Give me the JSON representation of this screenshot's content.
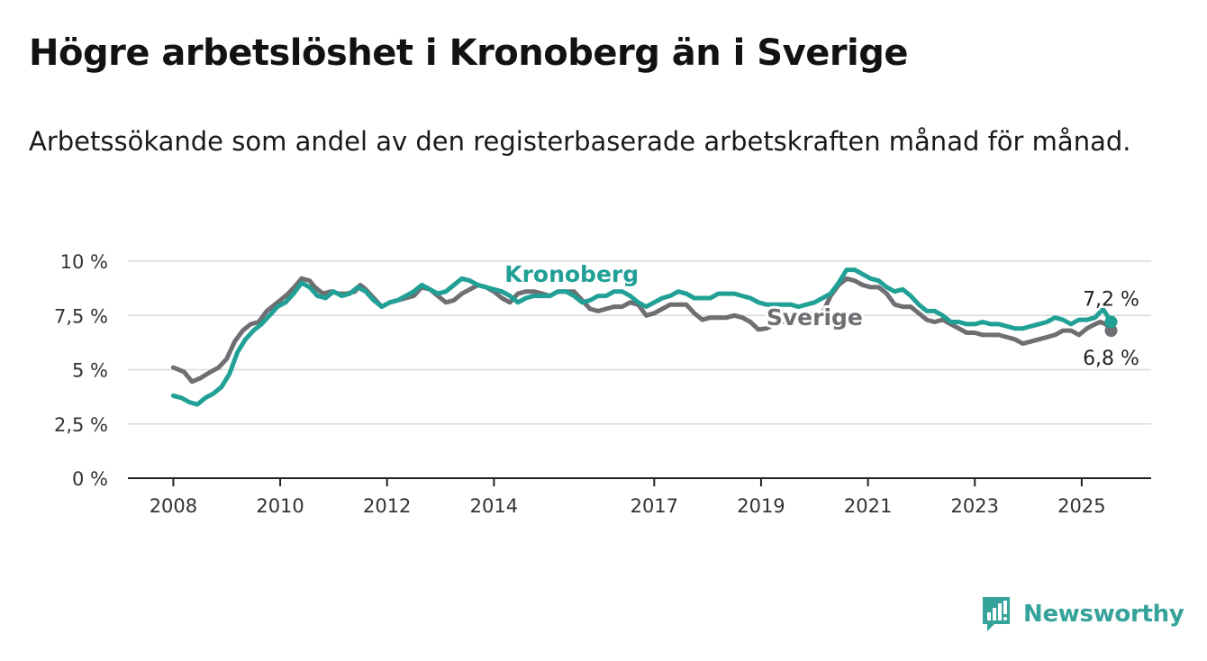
{
  "title": "Högre arbetslöshet i Kronoberg än i Sverige",
  "subtitle": "Arbetssökande som andel av den registerbaserade arbetskraften månad för månad.",
  "brand": {
    "name": "Newsworthy",
    "icon": "newsworthy-logo-icon",
    "color": "#36a39b"
  },
  "chart_data": {
    "type": "line",
    "x_unit": "year (decimal)",
    "x_ticks": [
      {
        "value": 2008,
        "label": "2008"
      },
      {
        "value": 2010,
        "label": "2010"
      },
      {
        "value": 2012,
        "label": "2012"
      },
      {
        "value": 2014,
        "label": "2014"
      },
      {
        "value": 2017,
        "label": "2017"
      },
      {
        "value": 2019,
        "label": "2019"
      },
      {
        "value": 2021,
        "label": "2021"
      },
      {
        "value": 2023,
        "label": "2023"
      },
      {
        "value": 2025,
        "label": "2025"
      }
    ],
    "y_ticks": [
      {
        "value": 0,
        "label": "0 %"
      },
      {
        "value": 2.5,
        "label": "2,5 %"
      },
      {
        "value": 5,
        "label": "5 %"
      },
      {
        "value": 7.5,
        "label": "7,5 %"
      },
      {
        "value": 10,
        "label": "10 %"
      }
    ],
    "xlim": [
      2007.15,
      2026.3
    ],
    "ylim": [
      0,
      10
    ],
    "grid": true,
    "series": [
      {
        "name": "Sverige",
        "color": "#6e6e73",
        "end_label": "6,8 %",
        "points": [
          [
            2008.0,
            5.1
          ],
          [
            2008.2,
            4.9
          ],
          [
            2008.35,
            4.45
          ],
          [
            2008.5,
            4.6
          ],
          [
            2008.7,
            4.9
          ],
          [
            2008.85,
            5.1
          ],
          [
            2009.0,
            5.5
          ],
          [
            2009.15,
            6.3
          ],
          [
            2009.3,
            6.8
          ],
          [
            2009.45,
            7.1
          ],
          [
            2009.6,
            7.2
          ],
          [
            2009.75,
            7.7
          ],
          [
            2009.9,
            8.0
          ],
          [
            2010.0,
            8.2
          ],
          [
            2010.15,
            8.5
          ],
          [
            2010.3,
            8.9
          ],
          [
            2010.4,
            9.2
          ],
          [
            2010.55,
            9.1
          ],
          [
            2010.65,
            8.8
          ],
          [
            2010.8,
            8.5
          ],
          [
            2010.95,
            8.6
          ],
          [
            2011.1,
            8.5
          ],
          [
            2011.25,
            8.5
          ],
          [
            2011.4,
            8.6
          ],
          [
            2011.5,
            8.9
          ],
          [
            2011.6,
            8.7
          ],
          [
            2011.75,
            8.3
          ],
          [
            2011.9,
            7.9
          ],
          [
            2012.05,
            8.1
          ],
          [
            2012.2,
            8.2
          ],
          [
            2012.35,
            8.3
          ],
          [
            2012.5,
            8.4
          ],
          [
            2012.65,
            8.8
          ],
          [
            2012.8,
            8.7
          ],
          [
            2012.95,
            8.4
          ],
          [
            2013.1,
            8.1
          ],
          [
            2013.25,
            8.2
          ],
          [
            2013.4,
            8.5
          ],
          [
            2013.55,
            8.7
          ],
          [
            2013.7,
            8.9
          ],
          [
            2013.85,
            8.8
          ],
          [
            2014.0,
            8.6
          ],
          [
            2014.15,
            8.3
          ],
          [
            2014.3,
            8.1
          ],
          [
            2014.45,
            8.5
          ],
          [
            2014.6,
            8.6
          ],
          [
            2014.75,
            8.6
          ],
          [
            2014.9,
            8.5
          ],
          [
            2015.05,
            8.4
          ],
          [
            2015.2,
            8.6
          ],
          [
            2015.35,
            8.6
          ],
          [
            2015.5,
            8.6
          ],
          [
            2015.65,
            8.2
          ],
          [
            2015.8,
            7.8
          ],
          [
            2015.95,
            7.7
          ],
          [
            2016.1,
            7.8
          ],
          [
            2016.25,
            7.9
          ],
          [
            2016.4,
            7.9
          ],
          [
            2016.55,
            8.1
          ],
          [
            2016.7,
            8.0
          ],
          [
            2016.85,
            7.5
          ],
          [
            2017.0,
            7.6
          ],
          [
            2017.15,
            7.8
          ],
          [
            2017.3,
            8.0
          ],
          [
            2017.45,
            8.0
          ],
          [
            2017.6,
            8.0
          ],
          [
            2017.75,
            7.6
          ],
          [
            2017.9,
            7.3
          ],
          [
            2018.05,
            7.4
          ],
          [
            2018.2,
            7.4
          ],
          [
            2018.35,
            7.4
          ],
          [
            2018.5,
            7.5
          ],
          [
            2018.65,
            7.4
          ],
          [
            2018.8,
            7.2
          ],
          [
            2018.95,
            6.85
          ],
          [
            2019.1,
            6.9
          ],
          [
            2019.25,
            7.1
          ],
          [
            2019.4,
            7.2
          ],
          [
            2019.55,
            7.3
          ],
          [
            2019.7,
            7.4
          ],
          [
            2019.85,
            7.5
          ],
          [
            2020.0,
            7.6
          ],
          [
            2020.15,
            7.6
          ],
          [
            2020.3,
            8.4
          ],
          [
            2020.45,
            8.9
          ],
          [
            2020.6,
            9.2
          ],
          [
            2020.75,
            9.1
          ],
          [
            2020.9,
            8.9
          ],
          [
            2021.05,
            8.8
          ],
          [
            2021.2,
            8.8
          ],
          [
            2021.35,
            8.5
          ],
          [
            2021.5,
            8.0
          ],
          [
            2021.65,
            7.9
          ],
          [
            2021.8,
            7.9
          ],
          [
            2021.95,
            7.6
          ],
          [
            2022.1,
            7.3
          ],
          [
            2022.25,
            7.2
          ],
          [
            2022.4,
            7.3
          ],
          [
            2022.55,
            7.1
          ],
          [
            2022.7,
            6.9
          ],
          [
            2022.85,
            6.7
          ],
          [
            2023.0,
            6.7
          ],
          [
            2023.15,
            6.6
          ],
          [
            2023.3,
            6.6
          ],
          [
            2023.45,
            6.6
          ],
          [
            2023.6,
            6.5
          ],
          [
            2023.75,
            6.4
          ],
          [
            2023.9,
            6.2
          ],
          [
            2024.05,
            6.3
          ],
          [
            2024.2,
            6.4
          ],
          [
            2024.35,
            6.5
          ],
          [
            2024.5,
            6.6
          ],
          [
            2024.65,
            6.8
          ],
          [
            2024.8,
            6.8
          ],
          [
            2024.95,
            6.6
          ],
          [
            2025.1,
            6.9
          ],
          [
            2025.25,
            7.1
          ],
          [
            2025.35,
            7.2
          ],
          [
            2025.45,
            7.1
          ],
          [
            2025.55,
            6.8
          ]
        ]
      },
      {
        "name": "Kronoberg",
        "color": "#21a096",
        "end_label": "7,2 %",
        "points": [
          [
            2008.0,
            3.8
          ],
          [
            2008.15,
            3.7
          ],
          [
            2008.3,
            3.5
          ],
          [
            2008.45,
            3.4
          ],
          [
            2008.6,
            3.7
          ],
          [
            2008.75,
            3.9
          ],
          [
            2008.9,
            4.2
          ],
          [
            2009.05,
            4.8
          ],
          [
            2009.2,
            5.8
          ],
          [
            2009.35,
            6.4
          ],
          [
            2009.5,
            6.8
          ],
          [
            2009.65,
            7.1
          ],
          [
            2009.8,
            7.5
          ],
          [
            2009.95,
            7.9
          ],
          [
            2010.1,
            8.1
          ],
          [
            2010.25,
            8.5
          ],
          [
            2010.4,
            9.0
          ],
          [
            2010.55,
            8.8
          ],
          [
            2010.7,
            8.4
          ],
          [
            2010.85,
            8.3
          ],
          [
            2011.0,
            8.6
          ],
          [
            2011.15,
            8.4
          ],
          [
            2011.3,
            8.5
          ],
          [
            2011.45,
            8.8
          ],
          [
            2011.6,
            8.6
          ],
          [
            2011.75,
            8.2
          ],
          [
            2011.9,
            7.9
          ],
          [
            2012.05,
            8.1
          ],
          [
            2012.2,
            8.2
          ],
          [
            2012.35,
            8.4
          ],
          [
            2012.5,
            8.6
          ],
          [
            2012.65,
            8.9
          ],
          [
            2012.8,
            8.7
          ],
          [
            2012.95,
            8.5
          ],
          [
            2013.1,
            8.6
          ],
          [
            2013.25,
            8.9
          ],
          [
            2013.4,
            9.2
          ],
          [
            2013.55,
            9.1
          ],
          [
            2013.7,
            8.9
          ],
          [
            2013.85,
            8.8
          ],
          [
            2014.0,
            8.7
          ],
          [
            2014.15,
            8.6
          ],
          [
            2014.3,
            8.4
          ],
          [
            2014.45,
            8.1
          ],
          [
            2014.6,
            8.3
          ],
          [
            2014.75,
            8.4
          ],
          [
            2014.9,
            8.4
          ],
          [
            2015.05,
            8.4
          ],
          [
            2015.2,
            8.6
          ],
          [
            2015.35,
            8.6
          ],
          [
            2015.5,
            8.4
          ],
          [
            2015.65,
            8.1
          ],
          [
            2015.8,
            8.2
          ],
          [
            2015.95,
            8.4
          ],
          [
            2016.1,
            8.4
          ],
          [
            2016.25,
            8.6
          ],
          [
            2016.4,
            8.6
          ],
          [
            2016.55,
            8.4
          ],
          [
            2016.7,
            8.1
          ],
          [
            2016.85,
            7.9
          ],
          [
            2017.0,
            8.1
          ],
          [
            2017.15,
            8.3
          ],
          [
            2017.3,
            8.4
          ],
          [
            2017.45,
            8.6
          ],
          [
            2017.6,
            8.5
          ],
          [
            2017.75,
            8.3
          ],
          [
            2017.9,
            8.3
          ],
          [
            2018.05,
            8.3
          ],
          [
            2018.2,
            8.5
          ],
          [
            2018.35,
            8.5
          ],
          [
            2018.5,
            8.5
          ],
          [
            2018.65,
            8.4
          ],
          [
            2018.8,
            8.3
          ],
          [
            2018.95,
            8.1
          ],
          [
            2019.1,
            8.0
          ],
          [
            2019.25,
            8.0
          ],
          [
            2019.4,
            8.0
          ],
          [
            2019.55,
            8.0
          ],
          [
            2019.7,
            7.9
          ],
          [
            2019.85,
            8.0
          ],
          [
            2020.0,
            8.1
          ],
          [
            2020.15,
            8.3
          ],
          [
            2020.3,
            8.5
          ],
          [
            2020.45,
            9.0
          ],
          [
            2020.6,
            9.6
          ],
          [
            2020.75,
            9.6
          ],
          [
            2020.9,
            9.4
          ],
          [
            2021.05,
            9.2
          ],
          [
            2021.2,
            9.1
          ],
          [
            2021.35,
            8.8
          ],
          [
            2021.5,
            8.6
          ],
          [
            2021.65,
            8.7
          ],
          [
            2021.8,
            8.4
          ],
          [
            2021.95,
            8.0
          ],
          [
            2022.1,
            7.7
          ],
          [
            2022.25,
            7.7
          ],
          [
            2022.4,
            7.5
          ],
          [
            2022.55,
            7.2
          ],
          [
            2022.7,
            7.2
          ],
          [
            2022.85,
            7.1
          ],
          [
            2023.0,
            7.1
          ],
          [
            2023.15,
            7.2
          ],
          [
            2023.3,
            7.1
          ],
          [
            2023.45,
            7.1
          ],
          [
            2023.6,
            7.0
          ],
          [
            2023.75,
            6.9
          ],
          [
            2023.9,
            6.9
          ],
          [
            2024.05,
            7.0
          ],
          [
            2024.2,
            7.1
          ],
          [
            2024.35,
            7.2
          ],
          [
            2024.5,
            7.4
          ],
          [
            2024.65,
            7.3
          ],
          [
            2024.8,
            7.1
          ],
          [
            2024.95,
            7.3
          ],
          [
            2025.1,
            7.3
          ],
          [
            2025.25,
            7.4
          ],
          [
            2025.4,
            7.8
          ],
          [
            2025.5,
            7.4
          ],
          [
            2025.55,
            7.2
          ]
        ]
      }
    ],
    "series_labels": [
      {
        "series": "Kronoberg",
        "x": 2014.2,
        "y": 9.05
      },
      {
        "series": "Sverige",
        "x": 2019.1,
        "y": 7.05
      }
    ]
  }
}
